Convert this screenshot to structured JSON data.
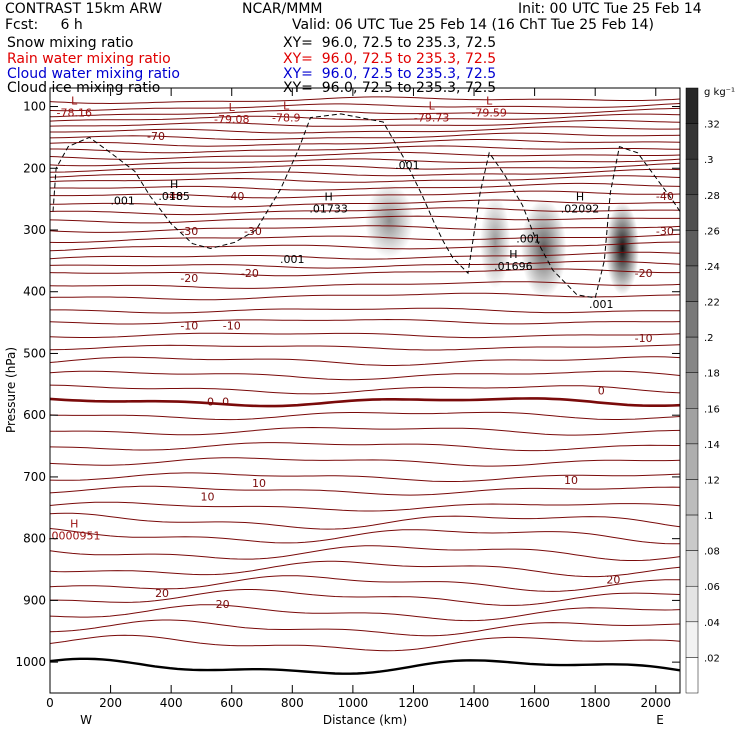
{
  "header": {
    "model": "CONTRAST 15km ARW",
    "center": "NCAR/MMM",
    "init": "Init: 00 UTC Tue 25 Feb 14",
    "fcst": "Fcst:     6 h",
    "valid": "Valid: 06 UTC Tue 25 Feb 14 (16 ChT Tue 25 Feb 14)",
    "fields": [
      {
        "name": "Snow mixing ratio",
        "xy": "XY=  96.0, 72.5 to 235.3, 72.5",
        "color": "#000000"
      },
      {
        "name": "Rain water mixing ratio",
        "xy": "XY=  96.0, 72.5 to 235.3, 72.5",
        "color": "#e00000"
      },
      {
        "name": "Cloud water mixing ratio",
        "xy": "XY=  96.0, 72.5 to 235.3, 72.5",
        "color": "#0000d0"
      },
      {
        "name": "Cloud ice mixing ratio",
        "xy": "XY=  96.0, 72.5 to 235.3, 72.5",
        "color": "#000000"
      }
    ]
  },
  "chart_data": {
    "type": "cross-section",
    "xlabel": "Distance (km)",
    "ylabel": "Pressure (hPa)",
    "xlim": [
      0,
      2080
    ],
    "ylim": [
      1050,
      70
    ],
    "x_ticks": [
      0,
      200,
      400,
      600,
      800,
      1000,
      1200,
      1400,
      1600,
      1800,
      2000
    ],
    "y_ticks": [
      100,
      200,
      300,
      400,
      500,
      600,
      700,
      800,
      900,
      1000
    ],
    "end_labels": {
      "left": "W",
      "right": "E"
    },
    "colorbar": {
      "unit": "g kg⁻¹",
      "ticks": [
        ".32",
        ".3",
        ".28",
        ".26",
        ".24",
        ".22",
        ".2",
        ".18",
        ".16",
        ".14",
        ".12",
        ".1",
        ".08",
        ".06",
        ".04",
        ".02"
      ]
    },
    "temperature_labels": [
      {
        "text": "-70",
        "x": 350,
        "p": 148
      },
      {
        "text": "-40",
        "x": 410,
        "p": 245
      },
      {
        "text": "-40",
        "x": 612,
        "p": 245
      },
      {
        "text": "-40",
        "x": 2030,
        "p": 245
      },
      {
        "text": "-30",
        "x": 460,
        "p": 302
      },
      {
        "text": "-30",
        "x": 670,
        "p": 302
      },
      {
        "text": "-30",
        "x": 2030,
        "p": 302
      },
      {
        "text": "-20",
        "x": 460,
        "p": 378
      },
      {
        "text": "-20",
        "x": 660,
        "p": 370
      },
      {
        "text": "-20",
        "x": 1960,
        "p": 370
      },
      {
        "text": "-10",
        "x": 460,
        "p": 455
      },
      {
        "text": "-10",
        "x": 600,
        "p": 455
      },
      {
        "text": "-10",
        "x": 1960,
        "p": 475
      },
      {
        "text": "0",
        "x": 530,
        "p": 578
      },
      {
        "text": "0",
        "x": 580,
        "p": 578
      },
      {
        "text": "0",
        "x": 1820,
        "p": 560
      },
      {
        "text": "10",
        "x": 520,
        "p": 732
      },
      {
        "text": "10",
        "x": 690,
        "p": 710
      },
      {
        "text": "10",
        "x": 1720,
        "p": 705
      },
      {
        "text": "20",
        "x": 370,
        "p": 888
      },
      {
        "text": "20",
        "x": 570,
        "p": 906
      },
      {
        "text": "20",
        "x": 1860,
        "p": 866
      }
    ],
    "extrema": [
      {
        "type": "L",
        "value": "-78.16",
        "x": 80,
        "p": 110
      },
      {
        "type": "L",
        "value": "-79.08",
        "x": 600,
        "p": 120
      },
      {
        "type": "L",
        "value": "-78.9",
        "x": 780,
        "p": 118
      },
      {
        "type": "L",
        "value": "-79.73",
        "x": 1260,
        "p": 118
      },
      {
        "type": "L",
        "value": "-79.59",
        "x": 1450,
        "p": 110
      },
      {
        "type": "H",
        "value": ".0185",
        "x": 410,
        "p": 245
      },
      {
        "type": "H",
        "value": ".01733",
        "x": 920,
        "p": 265
      },
      {
        "type": "H",
        "value": ".01696",
        "x": 1530,
        "p": 358
      },
      {
        "type": "H",
        "value": ".02092",
        "x": 1750,
        "p": 265
      },
      {
        "type": "H",
        "value": ".0000951",
        "x": 80,
        "p": 795
      }
    ],
    "contour_labels": [
      {
        "text": ".001",
        "x": 240,
        "p": 252
      },
      {
        "text": ".001",
        "x": 800,
        "p": 347
      },
      {
        "text": ".001",
        "x": 1180,
        "p": 195
      },
      {
        "text": ".001",
        "x": 1580,
        "p": 314
      },
      {
        "text": ".001",
        "x": 1820,
        "p": 420
      }
    ],
    "isotherm_levels_hPa": [
      92,
      103,
      113,
      122,
      132,
      142,
      152,
      162,
      172,
      182,
      192,
      202,
      212,
      222,
      234,
      246,
      260,
      272,
      285,
      300,
      316,
      330,
      346,
      360,
      372,
      392,
      410,
      430,
      448,
      470,
      490,
      512,
      535,
      558,
      578,
      600,
      625,
      650,
      675,
      700,
      722,
      748,
      772,
      795,
      822,
      848,
      872,
      895,
      920,
      945,
      970,
      1008
    ],
    "snow_blobs": [
      {
        "x": 1120,
        "p": 285,
        "rx": 80,
        "rp": 60,
        "peak": 0.13
      },
      {
        "x": 1470,
        "p": 320,
        "rx": 50,
        "rp": 75,
        "peak": 0.12
      },
      {
        "x": 1630,
        "p": 330,
        "rx": 75,
        "rp": 80,
        "peak": 0.19
      },
      {
        "x": 1890,
        "p": 330,
        "rx": 55,
        "rp": 75,
        "peak": 0.28
      }
    ]
  }
}
